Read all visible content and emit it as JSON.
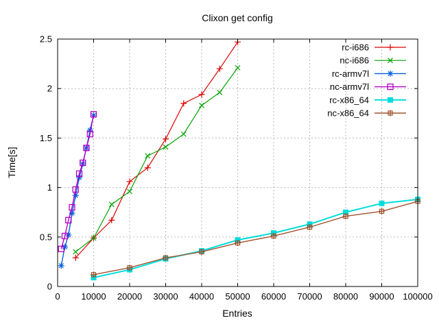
{
  "title": "Clixon get config",
  "axes": {
    "xlabel": "Entries",
    "ylabel": "Time[s]",
    "x_tick_labels": [
      "0",
      "10000",
      "20000",
      "30000",
      "40000",
      "50000",
      "60000",
      "70000",
      "80000",
      "90000",
      "100000"
    ],
    "y_tick_labels": [
      "0",
      "0.5",
      "1",
      "1.5",
      "2",
      "2.5"
    ]
  },
  "colors": {
    "background": "#ffffff",
    "border": "#000000",
    "grid": "#b8b8b8",
    "text": "#000000"
  },
  "chart_data": {
    "type": "line",
    "title": "Clixon get config",
    "xlabel": "Entries",
    "ylabel": "Time[s]",
    "xlim": [
      0,
      100000
    ],
    "ylim": [
      0,
      2.5
    ],
    "x_ticks": [
      0,
      10000,
      20000,
      30000,
      40000,
      50000,
      60000,
      70000,
      80000,
      90000,
      100000
    ],
    "y_ticks": [
      0,
      0.5,
      1,
      1.5,
      2,
      2.5
    ],
    "grid": true,
    "legend_position": "inside-top-right",
    "series": [
      {
        "name": "rc-i686",
        "color": "#dd0000",
        "marker": "plus",
        "line_width": 1.2,
        "x": [
          5000,
          10000,
          15000,
          20000,
          25000,
          30000,
          35000,
          40000,
          45000,
          50000
        ],
        "y": [
          0.29,
          0.49,
          0.67,
          1.06,
          1.2,
          1.49,
          1.85,
          1.94,
          2.2,
          2.47
        ]
      },
      {
        "name": "nc-i686",
        "color": "#00a000",
        "marker": "cross",
        "line_width": 1.2,
        "x": [
          5000,
          10000,
          15000,
          20000,
          25000,
          30000,
          35000,
          40000,
          45000,
          50000
        ],
        "y": [
          0.35,
          0.49,
          0.83,
          0.96,
          1.32,
          1.41,
          1.54,
          1.83,
          1.96,
          2.21
        ]
      },
      {
        "name": "rc-armv7l",
        "color": "#0061dd",
        "marker": "asterisk",
        "line_width": 1.4,
        "x": [
          1000,
          2000,
          3000,
          4000,
          5000,
          6000,
          7000,
          8000,
          9000,
          10000
        ],
        "y": [
          0.21,
          0.4,
          0.52,
          0.74,
          0.92,
          1.1,
          1.24,
          1.4,
          1.58,
          1.73
        ]
      },
      {
        "name": "nc-armv7l",
        "color": "#b400c8",
        "marker": "open-square",
        "line_width": 1.4,
        "x": [
          1000,
          2000,
          3000,
          4000,
          5000,
          6000,
          7000,
          8000,
          9000,
          10000
        ],
        "y": [
          0.38,
          0.51,
          0.67,
          0.8,
          0.98,
          1.14,
          1.25,
          1.4,
          1.54,
          1.74
        ]
      },
      {
        "name": "rc-x86_64",
        "color": "#00dcdc",
        "marker": "filled-square",
        "line_width": 2,
        "x": [
          10000,
          20000,
          30000,
          40000,
          50000,
          60000,
          70000,
          80000,
          90000,
          100000
        ],
        "y": [
          0.09,
          0.17,
          0.28,
          0.36,
          0.47,
          0.54,
          0.63,
          0.75,
          0.84,
          0.88
        ]
      },
      {
        "name": "nc-x86_64",
        "color": "#a0522d",
        "marker": "dotted-square",
        "line_width": 1.4,
        "x": [
          10000,
          20000,
          30000,
          40000,
          50000,
          60000,
          70000,
          80000,
          90000,
          100000
        ],
        "y": [
          0.12,
          0.19,
          0.29,
          0.35,
          0.44,
          0.51,
          0.6,
          0.71,
          0.76,
          0.86
        ]
      }
    ]
  }
}
